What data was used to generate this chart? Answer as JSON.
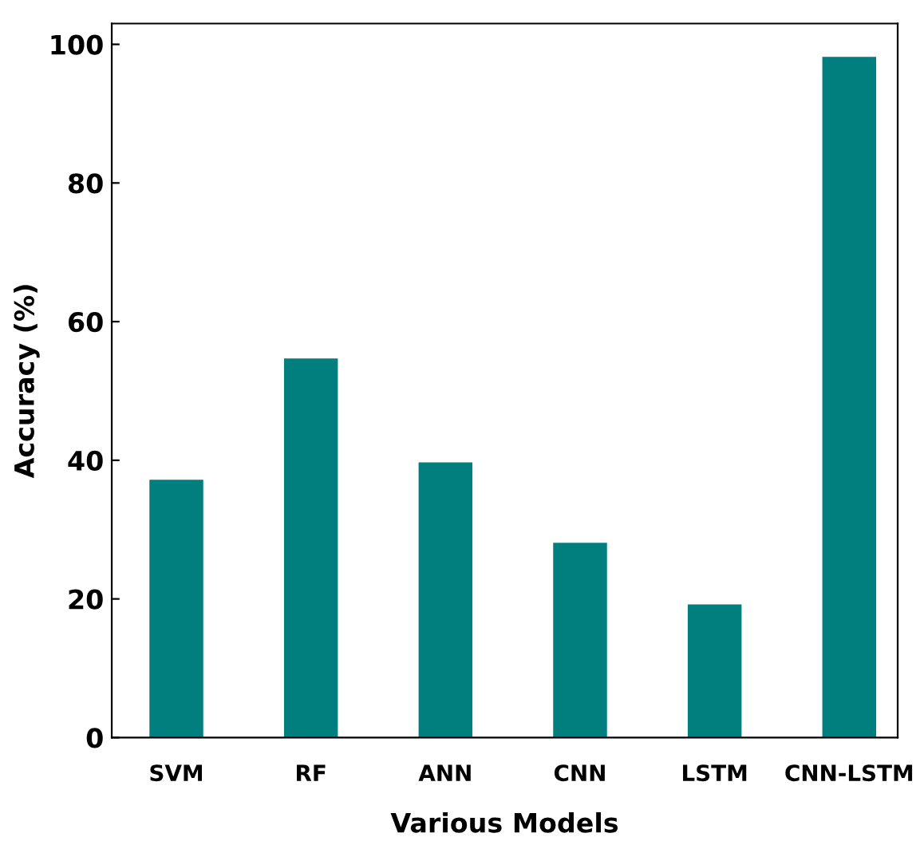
{
  "chart_data": {
    "type": "bar",
    "xlabel": "Various Models",
    "ylabel": "Accuracy (%)",
    "categories": [
      "SVM",
      "RF",
      "ANN",
      "CNN",
      "LSTM",
      "CNN-LSTM"
    ],
    "values": [
      37.2,
      54.7,
      39.7,
      28.1,
      19.2,
      98.2
    ],
    "color": "#017f7f",
    "ylim": [
      0,
      103
    ],
    "yticks": [
      0,
      20,
      40,
      60,
      80,
      100
    ],
    "grid": false
  }
}
